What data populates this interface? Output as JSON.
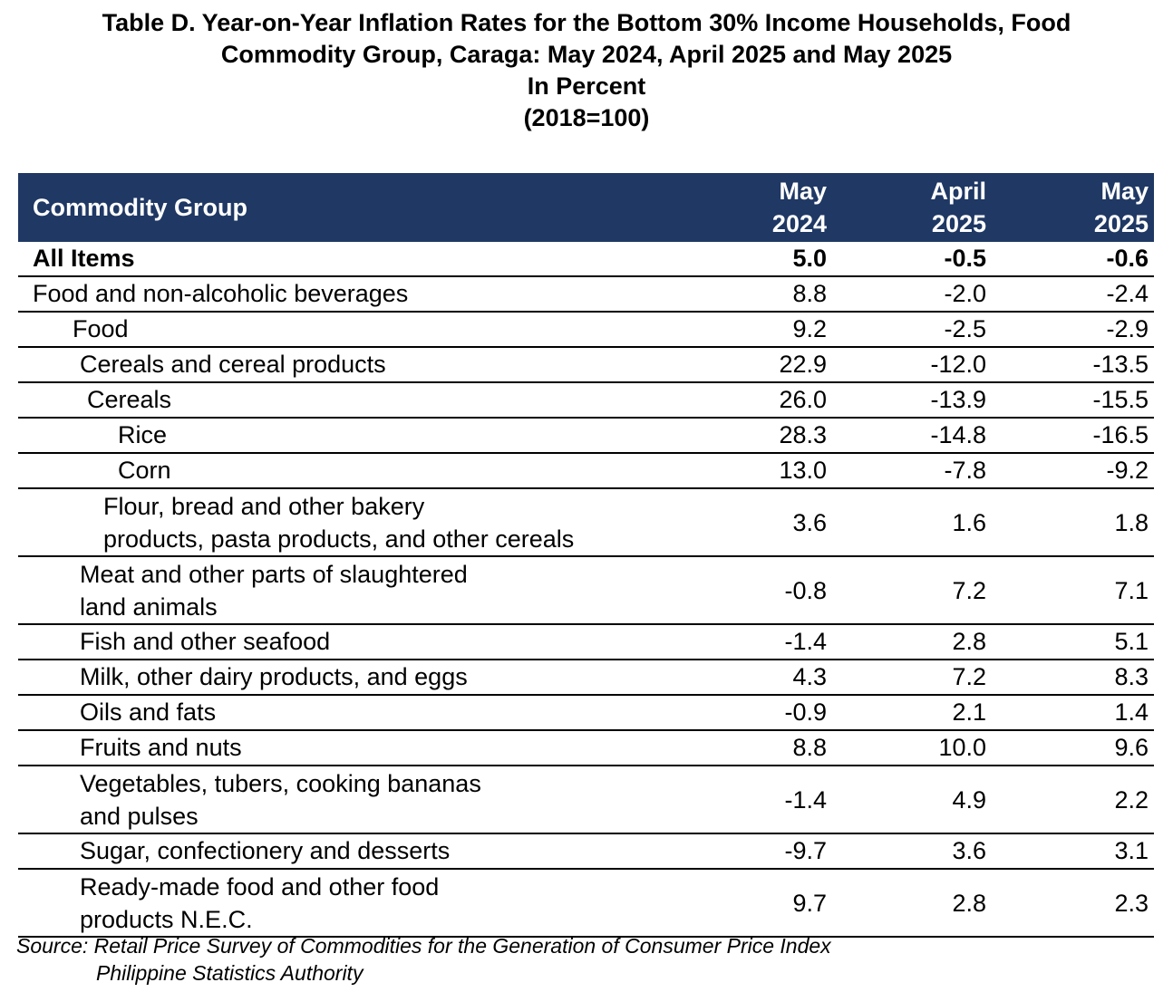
{
  "title": {
    "line1": "Table D. Year-on-Year Inflation Rates for the Bottom 30% Income Households, Food",
    "line2": "Commodity Group, Caraga: May 2024, April 2025 and May 2025",
    "line3": "In Percent",
    "line4": "(2018=100)"
  },
  "table": {
    "headers": {
      "commodity": "Commodity Group",
      "col1_line1": "May",
      "col1_line2": "2024",
      "col2_line1": "April",
      "col2_line2": "2025",
      "col3_line1": "May",
      "col3_line2": "2025"
    },
    "rows": [
      {
        "label": "All Items",
        "v1": "5.0",
        "v2": "-0.5",
        "v3": "-0.6"
      },
      {
        "label": "Food and non-alcoholic beverages",
        "v1": "8.8",
        "v2": "-2.0",
        "v3": "-2.4"
      },
      {
        "label": "Food",
        "v1": "9.2",
        "v2": "-2.5",
        "v3": "-2.9"
      },
      {
        "label": "Cereals and cereal products",
        "v1": "22.9",
        "v2": "-12.0",
        "v3": "-13.5"
      },
      {
        "label": "Cereals",
        "v1": "26.0",
        "v2": "-13.9",
        "v3": "-15.5"
      },
      {
        "label": "Rice",
        "v1": "28.3",
        "v2": "-14.8",
        "v3": "-16.5"
      },
      {
        "label": "Corn",
        "v1": "13.0",
        "v2": "-7.8",
        "v3": "-9.2"
      },
      {
        "label_line1": "Flour, bread and other bakery",
        "label_line2": "products, pasta products, and other cereals",
        "v1": "3.6",
        "v2": "1.6",
        "v3": "1.8"
      },
      {
        "label_line1": "Meat and other parts of slaughtered",
        "label_line2": "land animals",
        "v1": "-0.8",
        "v2": "7.2",
        "v3": "7.1"
      },
      {
        "label": "Fish and other seafood",
        "v1": "-1.4",
        "v2": "2.8",
        "v3": "5.1"
      },
      {
        "label": "Milk, other dairy products, and eggs",
        "v1": "4.3",
        "v2": "7.2",
        "v3": "8.3"
      },
      {
        "label": "Oils and fats",
        "v1": "-0.9",
        "v2": "2.1",
        "v3": "1.4"
      },
      {
        "label": "Fruits and nuts",
        "v1": "8.8",
        "v2": "10.0",
        "v3": "9.6"
      },
      {
        "label_line1": "Vegetables, tubers, cooking bananas",
        "label_line2": "and pulses",
        "v1": "-1.4",
        "v2": "4.9",
        "v3": "2.2"
      },
      {
        "label": "Sugar, confectionery and desserts",
        "v1": "-9.7",
        "v2": "3.6",
        "v3": "3.1"
      },
      {
        "label_line1": "Ready-made food and other food",
        "label_line2": "products N.E.C.",
        "v1": "9.7",
        "v2": "2.8",
        "v3": "2.3"
      }
    ]
  },
  "source": {
    "line1": "Source: Retail Price Survey of Commodities for the Generation of Consumer Price Index",
    "line2": "Philippine Statistics Authority"
  },
  "colors": {
    "header_bg": "#1f3864",
    "header_text": "#ffffff"
  }
}
